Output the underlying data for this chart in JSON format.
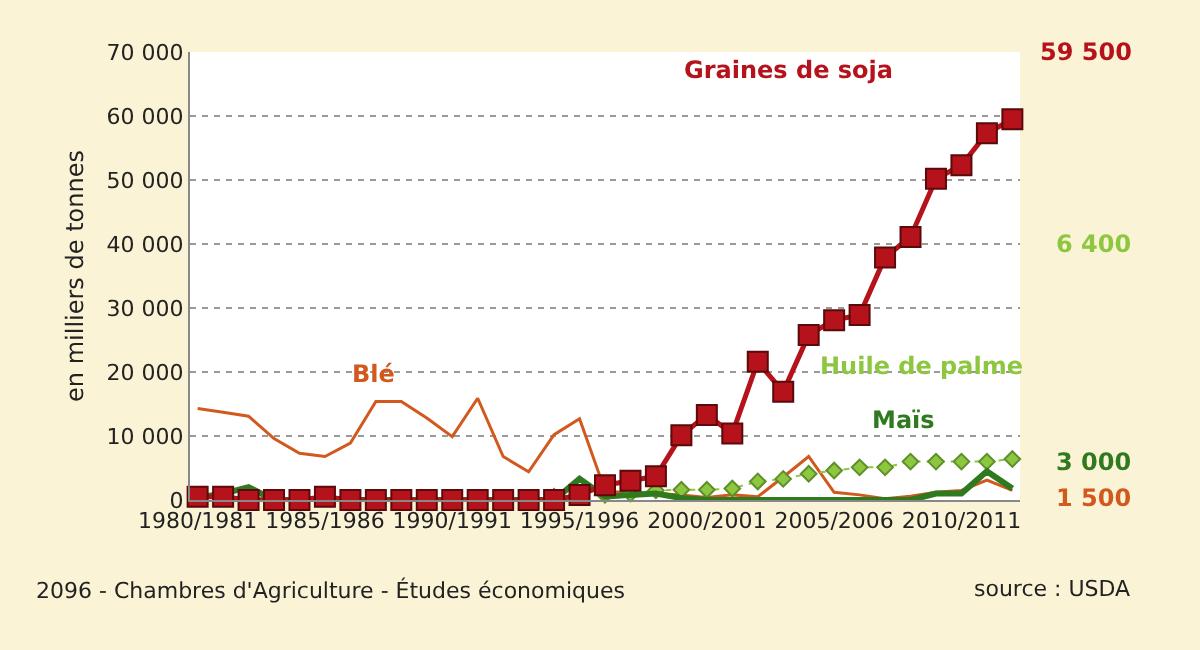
{
  "chart_data": {
    "type": "line",
    "ylabel": "en milliers de tonnes",
    "categories": [
      "1980/1981",
      null,
      null,
      null,
      null,
      "1985/1986",
      null,
      null,
      null,
      null,
      "1990/1991",
      null,
      null,
      null,
      null,
      "1995/1996",
      null,
      null,
      null,
      null,
      "2000/2001",
      null,
      null,
      null,
      null,
      "2005/2006",
      null,
      null,
      null,
      null,
      "2010/2011",
      null,
      null
    ],
    "series": [
      {
        "name": "Blé",
        "color": "#d2591e",
        "line_style": "solid",
        "marker": "none",
        "values": [
          14300,
          13700,
          13100,
          9600,
          7300,
          6800,
          8900,
          15400,
          15400,
          12800,
          9900,
          15900,
          6800,
          4400,
          10200,
          12700,
          1500,
          1000,
          1000,
          800,
          400,
          800,
          500,
          3600,
          6800,
          1200,
          800,
          200,
          600,
          1200,
          1500,
          3100,
          1500
        ]
      },
      {
        "name": "Huile de palme",
        "color": "#8dc63f",
        "line_style": "dotted",
        "marker": "diamond",
        "values": [
          300,
          300,
          300,
          300,
          300,
          300,
          300,
          300,
          300,
          300,
          300,
          300,
          300,
          300,
          500,
          800,
          800,
          1000,
          1500,
          1600,
          1600,
          1800,
          2900,
          3300,
          4100,
          4600,
          5100,
          5100,
          6000,
          6000,
          6000,
          6000,
          6400
        ]
      },
      {
        "name": "Maïs",
        "color": "#2f7a1f",
        "line_style": "solid",
        "marker": "none",
        "values": [
          400,
          1000,
          2000,
          0,
          0,
          0,
          0,
          0,
          0,
          0,
          0,
          0,
          0,
          0,
          0,
          3300,
          500,
          800,
          1000,
          300,
          0,
          0,
          0,
          0,
          0,
          0,
          0,
          0,
          0,
          1000,
          1000,
          4500,
          1800
        ]
      },
      {
        "name": "Graines de soja",
        "color": "#b5121b",
        "line_style": "solid",
        "marker": "square",
        "values": [
          500,
          500,
          0,
          0,
          0,
          500,
          0,
          0,
          0,
          0,
          0,
          0,
          0,
          0,
          0,
          800,
          2300,
          3000,
          3700,
          10100,
          13300,
          10400,
          21600,
          16900,
          25800,
          28100,
          28900,
          37900,
          41100,
          50200,
          52300,
          57300,
          59500
        ]
      }
    ],
    "ylim": [
      0,
      70000
    ],
    "yticks": [
      0,
      {
        "value": 10000,
        "label": "10 000"
      },
      {
        "value": 20000,
        "label": "20 000"
      },
      {
        "value": 30000,
        "label": "30 000"
      },
      {
        "value": 40000,
        "label": "40 000"
      },
      {
        "value": 50000,
        "label": "50 000"
      },
      {
        "value": 60000,
        "label": "60 000"
      },
      {
        "value": 70000,
        "label": "70 000"
      }
    ],
    "grid": "y",
    "legend": false,
    "annotations": [
      "1 500",
      "6 400",
      "3 000",
      "59 500",
      "2096 - Chambres d'Agriculture - Études économiques",
      "source : USDA"
    ]
  }
}
